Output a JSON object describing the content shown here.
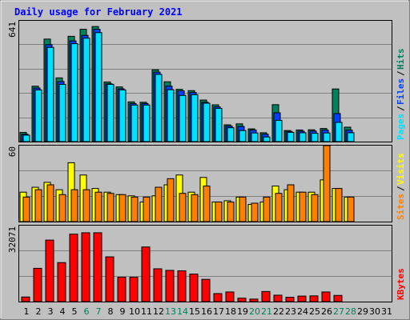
{
  "chart_data": {
    "type": "bar",
    "title": "Daily usage for February 2021",
    "colors": {
      "hits": "#00805c",
      "files": "#0040ff",
      "pages": "#00e0ff",
      "visits": "#ffff00",
      "sites": "#ff8000",
      "kbytes": "#ff0000",
      "weekend_label": "#00805c",
      "weekday_label": "#000000",
      "title": "#0000ff"
    },
    "categories": [
      "1",
      "2",
      "3",
      "4",
      "5",
      "6",
      "7",
      "8",
      "9",
      "10",
      "11",
      "12",
      "13",
      "14",
      "15",
      "16",
      "17",
      "18",
      "19",
      "20",
      "21",
      "22",
      "23",
      "24",
      "25",
      "26",
      "27",
      "28",
      "29",
      "30",
      "31"
    ],
    "weekend_days": [
      "6",
      "7",
      "13",
      "14",
      "20",
      "21",
      "27",
      "28"
    ],
    "panels": [
      {
        "id": "top",
        "ymax_label": "641",
        "ymax": 641,
        "series": [
          {
            "name": "Hits",
            "values": [
              50,
              300,
              555,
              345,
              570,
              608,
              623,
              323,
              296,
              215,
              213,
              389,
              324,
              283,
              276,
              225,
              199,
              91,
              96,
              69,
              48,
              200,
              60,
              63,
              64,
              71,
              285,
              78,
              0,
              0,
              0
            ]
          },
          {
            "name": "Files",
            "values": [
              40,
              290,
              525,
              325,
              545,
              575,
              608,
              313,
              286,
              206,
              206,
              376,
              300,
              275,
              266,
              213,
              188,
              84,
              82,
              63,
              40,
              156,
              55,
              56,
              57,
              63,
              152,
              62,
              0,
              0,
              0
            ]
          },
          {
            "name": "Pages",
            "values": [
              35,
              280,
              510,
              310,
              530,
              560,
              590,
              310,
              280,
              198,
              198,
              364,
              281,
              250,
              254,
              208,
              180,
              75,
              60,
              47,
              25,
              115,
              50,
              48,
              45,
              47,
              104,
              48,
              0,
              0,
              0
            ]
          }
        ],
        "side_labels": [
          {
            "text": "Pages",
            "series": "pages"
          },
          {
            "text": "/",
            "series": "separator"
          },
          {
            "text": "Files",
            "series": "files"
          },
          {
            "text": "/",
            "series": "separator"
          },
          {
            "text": "Hits",
            "series": "hits"
          }
        ]
      },
      {
        "id": "middle",
        "ymax_label": "60",
        "ymax": 60,
        "series": [
          {
            "name": "Visits",
            "values": [
              24,
              28,
              32,
              26,
              48,
              38,
              27,
              24,
              22,
              21,
              16,
              21,
              30,
              38,
              24,
              36,
              16,
              17,
              20,
              14,
              16,
              29,
              26,
              24,
              24,
              34,
              27,
              20,
              0,
              0,
              0
            ]
          },
          {
            "name": "Sites",
            "values": [
              20,
              26,
              30,
              22,
              26,
              26,
              24,
              23,
              22,
              20,
              20,
              28,
              35,
              23,
              22,
              29,
              16,
              16,
              20,
              15,
              20,
              23,
              30,
              24,
              22,
              62,
              27,
              20,
              0,
              0,
              0
            ]
          }
        ],
        "side_labels": [
          {
            "text": "Sites",
            "series": "sites"
          },
          {
            "text": "/",
            "series": "separator"
          },
          {
            "text": "Visits",
            "series": "visits"
          }
        ]
      },
      {
        "id": "bottom",
        "ymax_label": "32071",
        "ymax": 32071,
        "series": [
          {
            "name": "KBytes",
            "values": [
              2000,
              14500,
              26800,
              17000,
              29400,
              30000,
              30000,
              19500,
              10600,
              10600,
              23800,
              14300,
              13600,
              13400,
              12000,
              9700,
              3500,
              4200,
              1500,
              1100,
              4400,
              2800,
              1900,
              2400,
              2500,
              4200,
              2700,
              0,
              0,
              0,
              0
            ]
          }
        ],
        "side_labels": [
          {
            "text": "KBytes",
            "series": "kbytes"
          }
        ]
      }
    ]
  }
}
